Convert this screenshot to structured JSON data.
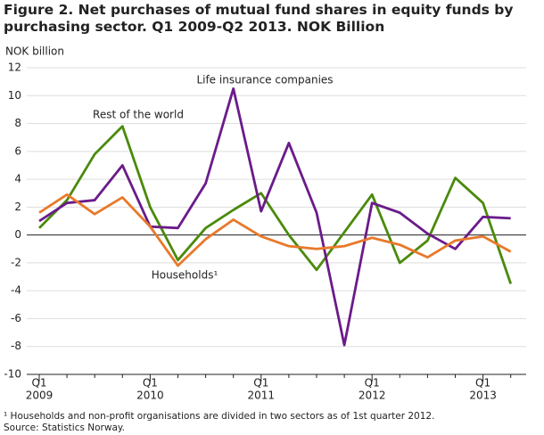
{
  "chart_data": {
    "type": "line",
    "title": "Figure 2. Net purchases of mutual fund shares in equity funds by purchasing sector. Q1 2009-Q2 2013. NOK Billion",
    "y_label": "NOK billion",
    "notes": [
      "¹ Households and non-profit organisations are divided in two sectors as of 1st quarter 2012.",
      "Source: Statistics Norway."
    ],
    "categories": [
      [
        "Q1",
        "2009"
      ],
      null,
      null,
      null,
      [
        "Q1",
        "2010"
      ],
      null,
      null,
      null,
      [
        "Q1",
        "2011"
      ],
      null,
      null,
      null,
      [
        "Q1",
        "2012"
      ],
      null,
      null,
      null,
      [
        "Q1",
        "2013"
      ],
      null
    ],
    "series": [
      {
        "name": "Rest of the world",
        "color": "#4a8a0c",
        "values": [
          0.5,
          2.5,
          5.8,
          7.8,
          2.0,
          -1.8,
          0.5,
          1.8,
          3.0,
          0.0,
          -2.5,
          0.2,
          2.9,
          -2.0,
          -0.4,
          4.1,
          2.3,
          -3.5
        ]
      },
      {
        "name": "Life insurance companies",
        "color": "#6a1b8a",
        "values": [
          1.0,
          2.3,
          2.5,
          5.0,
          0.6,
          0.5,
          3.7,
          10.5,
          1.7,
          6.6,
          1.6,
          -7.9,
          2.3,
          1.6,
          0.1,
          -1.0,
          1.3,
          1.2
        ]
      },
      {
        "name": "Households¹",
        "color": "#e8792a",
        "values": [
          1.6,
          2.9,
          1.5,
          2.7,
          0.6,
          -2.2,
          -0.3,
          1.1,
          -0.1,
          -0.8,
          -1.0,
          -0.8,
          -0.2,
          -0.7,
          -1.6,
          -0.4,
          -0.1,
          -1.2
        ]
      }
    ],
    "ylim": [
      -10,
      12
    ],
    "yticks": [
      -10,
      -8,
      -6,
      -4,
      -2,
      0,
      2,
      4,
      6,
      8,
      10,
      12
    ],
    "grid": true
  }
}
